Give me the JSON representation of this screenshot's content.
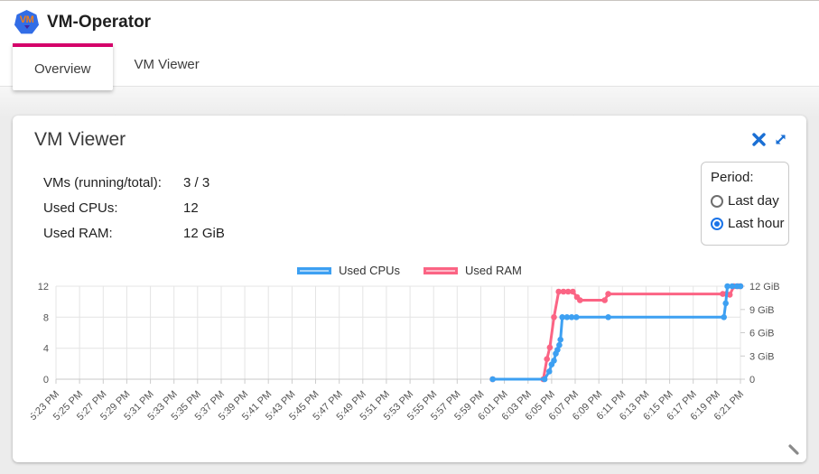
{
  "header": {
    "title": "VM-Operator",
    "logo_text": "VM"
  },
  "tabs": [
    {
      "label": "Overview",
      "active": true
    },
    {
      "label": "VM Viewer",
      "active": false
    }
  ],
  "card": {
    "title": "VM Viewer",
    "stats": [
      {
        "label": "VMs (running/total):",
        "value": "3 / 3"
      },
      {
        "label": "Used CPUs:",
        "value": "12"
      },
      {
        "label": "Used RAM:",
        "value": "12 GiB"
      }
    ],
    "period": {
      "label": "Period:",
      "options": [
        {
          "label": "Last day",
          "selected": false
        },
        {
          "label": "Last hour",
          "selected": true
        }
      ]
    }
  },
  "colors": {
    "tab_indicator": "#d4006a",
    "action_icon_blue": "#1a6fd4",
    "cpu_line": "#3da0f2",
    "cpu_fill": "rgba(61,160,242,0.45)",
    "ram_line": "#fb6484",
    "ram_fill": "rgba(251,100,132,0.45)",
    "radio_selected": "#1a73e8"
  },
  "chart_data": {
    "type": "line",
    "title": "",
    "legend": [
      {
        "label": "Used CPUs",
        "line": "#3da0f2",
        "fill": "rgba(61,160,242,0.45)"
      },
      {
        "label": "Used RAM",
        "line": "#fb6484",
        "fill": "rgba(251,100,132,0.45)"
      }
    ],
    "x_labels": [
      "5:23 PM",
      "5:25 PM",
      "5:27 PM",
      "5:29 PM",
      "5:31 PM",
      "5:33 PM",
      "5:35 PM",
      "5:37 PM",
      "5:39 PM",
      "5:41 PM",
      "5:43 PM",
      "5:45 PM",
      "5:47 PM",
      "5:49 PM",
      "5:51 PM",
      "5:53 PM",
      "5:55 PM",
      "5:57 PM",
      "5:59 PM",
      "6:01 PM",
      "6:03 PM",
      "6:05 PM",
      "6:07 PM",
      "6:09 PM",
      "6:11 PM",
      "6:13 PM",
      "6:15 PM",
      "6:17 PM",
      "6:19 PM",
      "6:21 PM"
    ],
    "x_range_minutes": [
      0,
      58
    ],
    "left_axis": {
      "ticks": [
        0,
        4,
        8,
        12
      ],
      "max": 12
    },
    "right_axis": {
      "tick_values": [
        0,
        3,
        6,
        9,
        12
      ],
      "tick_labels": [
        "0",
        "3 GiB",
        "6 GiB",
        "9 GiB",
        "12 GiB"
      ],
      "max": 12
    },
    "series": [
      {
        "name": "Used RAM",
        "axis": "right",
        "color": "#fb6484",
        "points": [
          [
            37,
            0
          ],
          [
            41.3,
            0
          ],
          [
            41.6,
            2.6
          ],
          [
            41.85,
            4.1
          ],
          [
            42.2,
            8
          ],
          [
            42.6,
            11.3
          ],
          [
            43.0,
            11.3
          ],
          [
            43.4,
            11.3
          ],
          [
            43.8,
            11.3
          ],
          [
            44.15,
            10.6
          ],
          [
            44.4,
            10.2
          ],
          [
            46.5,
            10.2
          ],
          [
            46.8,
            11.0
          ],
          [
            56.5,
            11.0
          ],
          [
            56.8,
            11.0
          ],
          [
            57.1,
            10.9
          ],
          [
            57.45,
            12
          ],
          [
            57.8,
            12
          ],
          [
            58,
            12
          ]
        ]
      },
      {
        "name": "Used CPUs",
        "axis": "left",
        "color": "#3da0f2",
        "points": [
          [
            37,
            0
          ],
          [
            41.4,
            0
          ],
          [
            41.8,
            1
          ],
          [
            42.0,
            1.9
          ],
          [
            42.2,
            2.4
          ],
          [
            42.35,
            3.3
          ],
          [
            42.5,
            3.8
          ],
          [
            42.65,
            4.4
          ],
          [
            42.75,
            5.1
          ],
          [
            42.9,
            8
          ],
          [
            43.3,
            8
          ],
          [
            43.7,
            8
          ],
          [
            44.1,
            8
          ],
          [
            46.8,
            8
          ],
          [
            56.6,
            8
          ],
          [
            56.75,
            9.8
          ],
          [
            56.9,
            12
          ],
          [
            57.3,
            12
          ],
          [
            57.7,
            12
          ],
          [
            58,
            12
          ]
        ]
      }
    ]
  }
}
